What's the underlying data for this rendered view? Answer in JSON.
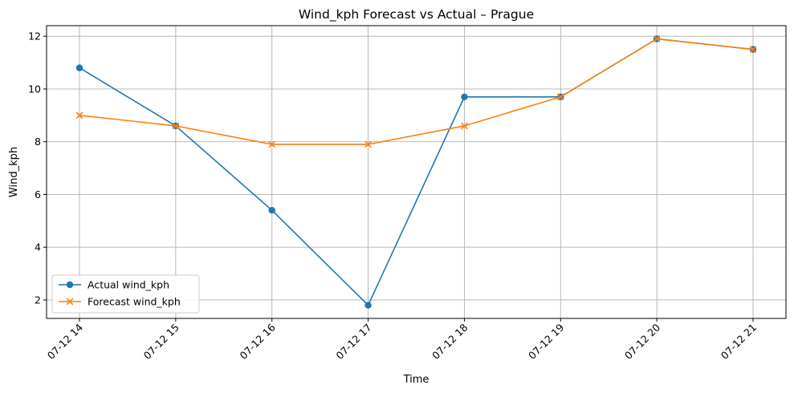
{
  "chart_data": {
    "type": "line",
    "title": "Wind_kph Forecast vs Actual – Prague",
    "xlabel": "Time",
    "ylabel": "Wind_kph",
    "categories": [
      "07-12 14",
      "07-12 15",
      "07-12 16",
      "07-12 17",
      "07-12 18",
      "07-12 19",
      "07-12 20",
      "07-12 21"
    ],
    "ylim": [
      1.3,
      12.4
    ],
    "yticks": [
      2,
      4,
      6,
      8,
      10,
      12
    ],
    "grid": true,
    "legend_position": "lower-left",
    "series": [
      {
        "name": "Actual wind_kph",
        "color": "#1f77b4",
        "marker": "circle",
        "values": [
          10.8,
          8.6,
          5.4,
          1.8,
          9.7,
          9.7,
          11.9,
          11.5
        ]
      },
      {
        "name": "Forecast wind_kph",
        "color": "#ff7f0e",
        "marker": "x",
        "values": [
          9.0,
          8.6,
          7.9,
          7.9,
          8.6,
          9.7,
          11.9,
          11.5
        ]
      }
    ]
  }
}
